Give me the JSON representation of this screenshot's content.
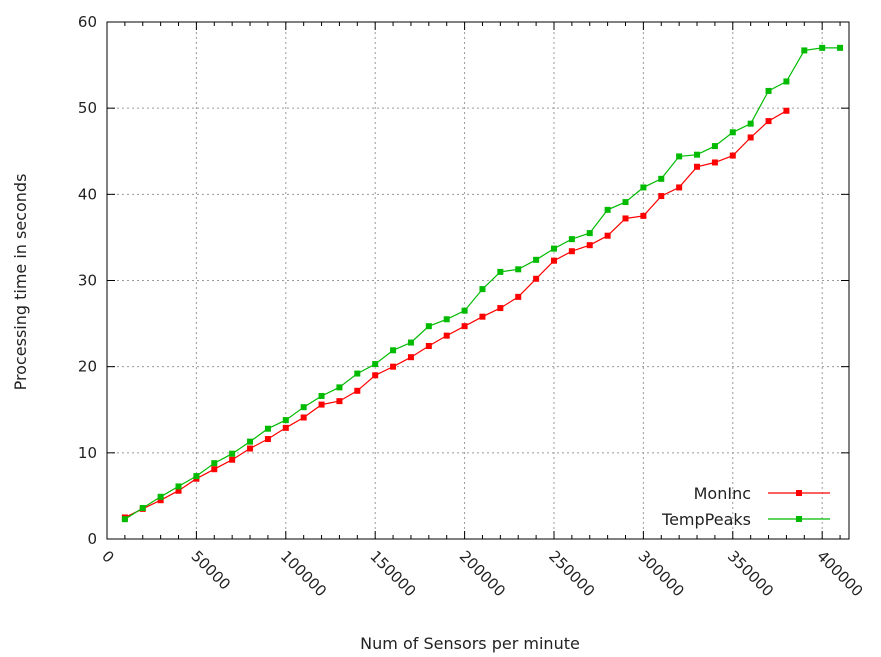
{
  "chart_data": {
    "type": "line",
    "title": "",
    "xlabel": "Num of  Sensors per minute",
    "ylabel": "Processing time in seconds",
    "xlim": [
      0,
      415000
    ],
    "ylim": [
      0,
      60
    ],
    "xticks": [
      "0",
      "50000",
      "100000",
      "150000",
      "200000",
      "250000",
      "300000",
      "350000",
      "400000"
    ],
    "yticks": [
      "0",
      "10",
      "20",
      "30",
      "40",
      "50",
      "60"
    ],
    "grid": true,
    "legend_position": "bottom-right",
    "series": [
      {
        "name": "MonInc",
        "color": "#ff0000",
        "x": [
          10000,
          20000,
          30000,
          40000,
          50000,
          60000,
          70000,
          80000,
          90000,
          100000,
          110000,
          120000,
          130000,
          140000,
          150000,
          160000,
          170000,
          180000,
          190000,
          200000,
          210000,
          220000,
          230000,
          240000,
          250000,
          260000,
          270000,
          280000,
          290000,
          300000,
          310000,
          320000,
          330000,
          340000,
          350000,
          360000,
          370000,
          380000
        ],
        "values": [
          2.5,
          3.5,
          4.5,
          5.6,
          7.0,
          8.1,
          9.2,
          10.5,
          11.6,
          12.9,
          14.1,
          15.6,
          16.0,
          17.2,
          19.0,
          20.0,
          21.1,
          22.4,
          23.6,
          24.7,
          25.8,
          26.8,
          28.1,
          30.2,
          32.3,
          33.4,
          34.1,
          35.2,
          37.2,
          37.5,
          39.8,
          40.8,
          43.2,
          43.7,
          44.5,
          46.6,
          48.5,
          49.7
        ]
      },
      {
        "name": "TempPeaks",
        "color": "#00bb00",
        "x": [
          10000,
          20000,
          30000,
          40000,
          50000,
          60000,
          70000,
          80000,
          90000,
          100000,
          110000,
          120000,
          130000,
          140000,
          150000,
          160000,
          170000,
          180000,
          190000,
          200000,
          210000,
          220000,
          230000,
          240000,
          250000,
          260000,
          270000,
          280000,
          290000,
          300000,
          310000,
          320000,
          330000,
          340000,
          350000,
          360000,
          370000,
          380000,
          390000,
          400000,
          410000
        ],
        "values": [
          2.3,
          3.6,
          4.9,
          6.1,
          7.3,
          8.8,
          9.9,
          11.3,
          12.8,
          13.8,
          15.3,
          16.6,
          17.6,
          19.2,
          20.3,
          21.9,
          22.8,
          24.7,
          25.5,
          26.5,
          29.0,
          31.0,
          31.3,
          32.4,
          33.7,
          34.8,
          35.5,
          38.2,
          39.1,
          40.8,
          41.8,
          44.4,
          44.6,
          45.6,
          47.2,
          48.2,
          52.0,
          53.1,
          56.7,
          57.0,
          57.0
        ]
      }
    ]
  }
}
